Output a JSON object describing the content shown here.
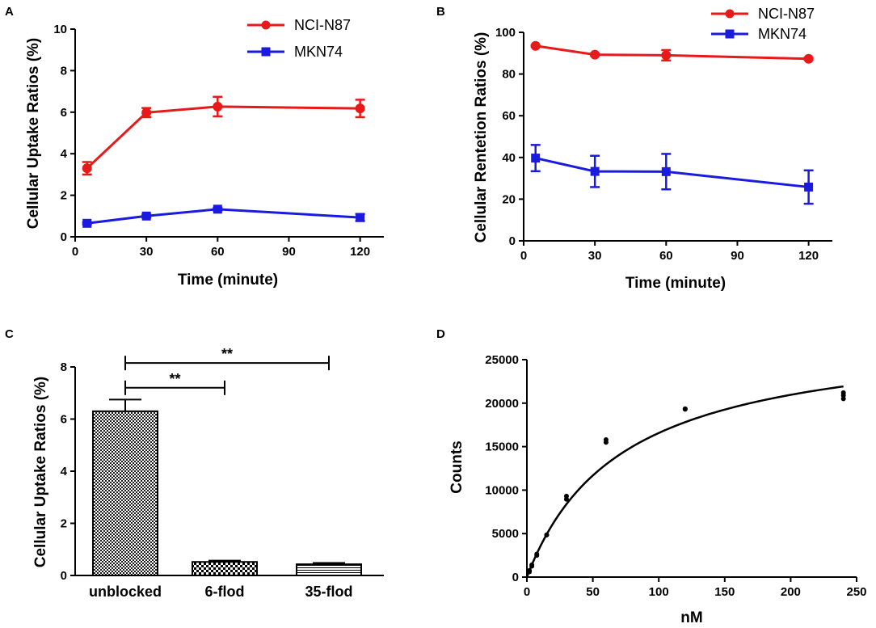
{
  "chart_data": [
    {
      "panel": "A",
      "type": "line",
      "xlabel": "Time (minute)",
      "ylabel": "Cellular Uptake Ratios (%)",
      "xlim": [
        0,
        130
      ],
      "ylim": [
        0,
        10
      ],
      "xticks": [
        0,
        30,
        60,
        90,
        120
      ],
      "yticks": [
        0,
        2,
        4,
        6,
        8,
        10
      ],
      "series": [
        {
          "name": "NCI-N87",
          "color": "#e8191a",
          "marker": "circle",
          "x": [
            5,
            30,
            60,
            120
          ],
          "values": [
            3.3,
            5.98,
            6.27,
            6.18
          ],
          "errors": [
            0.3,
            0.22,
            0.47,
            0.42
          ]
        },
        {
          "name": "MKN74",
          "color": "#1a1ae0",
          "marker": "square",
          "x": [
            5,
            30,
            60,
            120
          ],
          "values": [
            0.65,
            1.0,
            1.33,
            0.93
          ],
          "errors": [
            0.05,
            0.07,
            0.06,
            0.17
          ]
        }
      ]
    },
    {
      "panel": "B",
      "type": "line",
      "xlabel": "Time (minute)",
      "ylabel": "Cellular Rentetion Ratios (%)",
      "xlim": [
        0,
        130
      ],
      "ylim": [
        0,
        100
      ],
      "xticks": [
        0,
        30,
        60,
        90,
        120
      ],
      "yticks": [
        0,
        20,
        40,
        60,
        80,
        100
      ],
      "series": [
        {
          "name": "NCI-N87",
          "color": "#e8191a",
          "marker": "circle",
          "x": [
            5,
            30,
            60,
            120
          ],
          "values": [
            93.5,
            89.3,
            89.0,
            87.3
          ],
          "errors": [
            0.4,
            0.6,
            2.5,
            0.5
          ]
        },
        {
          "name": "MKN74",
          "color": "#1a1ae0",
          "marker": "square",
          "x": [
            5,
            30,
            60,
            120
          ],
          "values": [
            39.7,
            33.3,
            33.2,
            25.8
          ],
          "errors": [
            6.3,
            7.5,
            8.5,
            8.0
          ]
        }
      ]
    },
    {
      "panel": "C",
      "type": "bar",
      "ylabel": "Cellular Uptake Ratios (%)",
      "ylim": [
        0,
        8
      ],
      "yticks": [
        0,
        2,
        4,
        6,
        8
      ],
      "categories": [
        "unblocked",
        "6-flod",
        "35-flod"
      ],
      "values": [
        6.3,
        0.52,
        0.43
      ],
      "errors": [
        0.45,
        0.05,
        0.05
      ],
      "patterns": [
        "checker-fine",
        "checker-bold",
        "stripes"
      ],
      "significance": [
        {
          "from": 0,
          "to": 1,
          "label": "**",
          "y": 7.2
        },
        {
          "from": 0,
          "to": 2,
          "label": "**",
          "y": 8.15
        }
      ]
    },
    {
      "panel": "D",
      "type": "scatter",
      "xlabel": "nM",
      "ylabel": "Counts",
      "xlim": [
        0,
        250
      ],
      "ylim": [
        0,
        25000
      ],
      "xticks": [
        0,
        50,
        100,
        150,
        200,
        250
      ],
      "yticks": [
        0,
        5000,
        10000,
        15000,
        20000,
        25000
      ],
      "points": {
        "x": [
          1.9,
          1.9,
          3.75,
          3.75,
          7.5,
          7.5,
          15,
          15,
          30,
          30,
          60,
          60,
          120,
          120,
          240,
          240,
          240
        ],
        "y": [
          600,
          750,
          1250,
          1400,
          2500,
          2650,
          4850,
          4850,
          8950,
          9300,
          15500,
          15800,
          19300,
          19350,
          20500,
          20900,
          21200
        ]
      },
      "fit": {
        "model": "one-site binding",
        "Bmax": 28500,
        "Kd": 72
      }
    }
  ]
}
